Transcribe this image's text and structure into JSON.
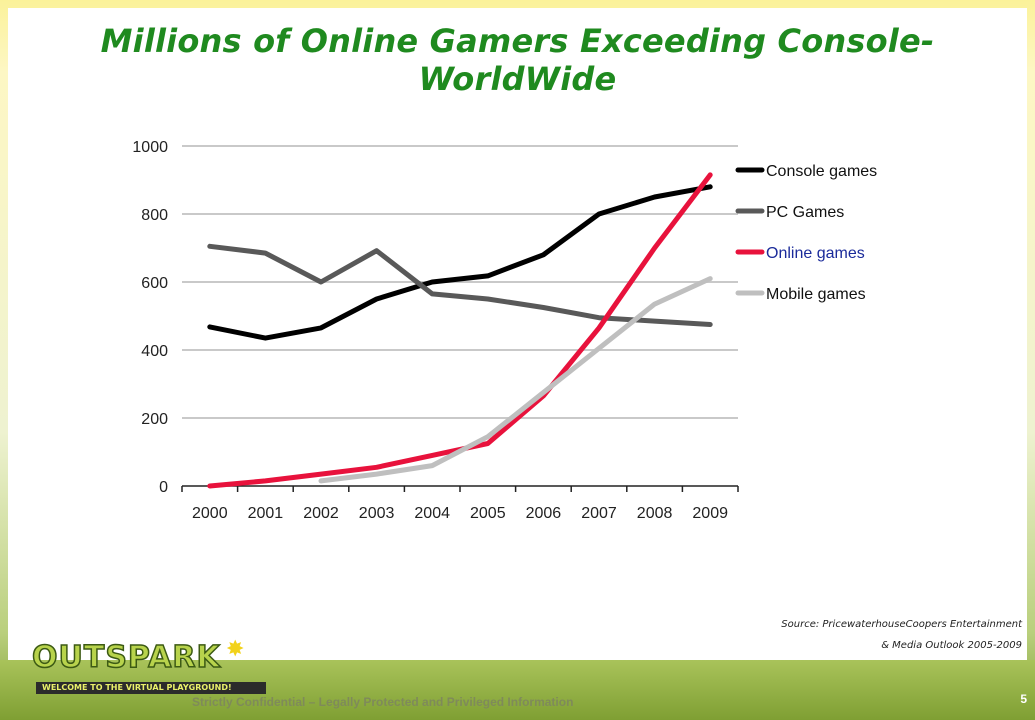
{
  "slide": {
    "title": "Millions of Online Gamers Exceeding Console- WorldWide",
    "source_line1": "Source: PricewaterhouseCoopers  Entertainment",
    "source_line2": "& Media Outlook 2005-2009",
    "footer_text": "Strictly Confidential – Legally Protected and Privileged Information",
    "page_number": "5",
    "logo_text": "OUTSPARK",
    "logo_tagline": "WELCOME TO THE VIRTUAL PLAYGROUND!"
  },
  "chart_data": {
    "type": "line",
    "title": "",
    "xlabel": "",
    "ylabel": "",
    "categories": [
      "2000",
      "2001",
      "2002",
      "2003",
      "2004",
      "2005",
      "2006",
      "2007",
      "2008",
      "2009"
    ],
    "ylim": [
      0,
      1000
    ],
    "yticks": [
      0,
      200,
      400,
      600,
      800,
      1000
    ],
    "grid": true,
    "legend_position": "right",
    "series": [
      {
        "name": "Console games",
        "color": "#000000",
        "values": [
          468,
          435,
          465,
          550,
          600,
          618,
          680,
          800,
          850,
          880
        ]
      },
      {
        "name": "PC Games",
        "color": "#595959",
        "values": [
          705,
          685,
          600,
          692,
          565,
          550,
          525,
          495,
          485,
          475
        ]
      },
      {
        "name": "Online games",
        "color": "#e8123c",
        "legend_text_color": "#1a2a9a",
        "values": [
          0,
          15,
          35,
          55,
          90,
          125,
          265,
          465,
          700,
          915
        ]
      },
      {
        "name": "Mobile games",
        "color": "#bfbfbf",
        "values": [
          null,
          null,
          15,
          35,
          60,
          145,
          275,
          405,
          535,
          610
        ]
      }
    ]
  }
}
